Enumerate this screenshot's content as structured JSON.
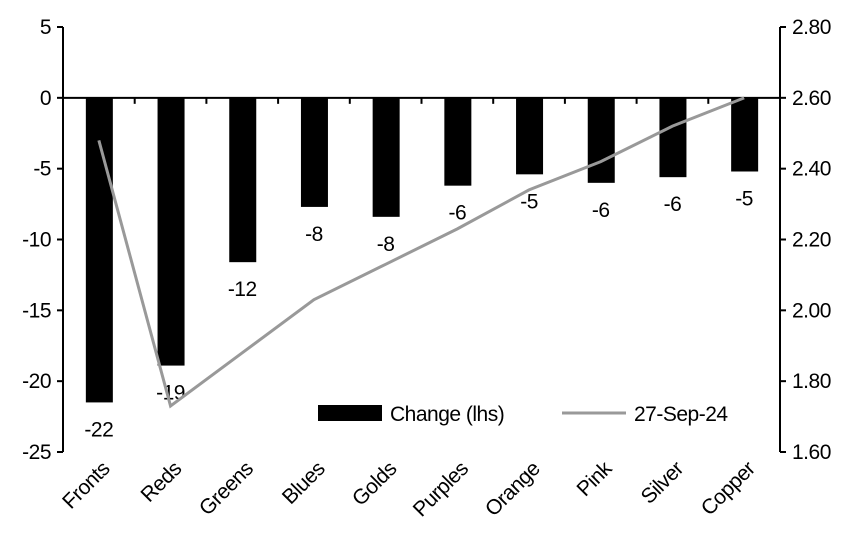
{
  "chart_data": {
    "type": "bar+line",
    "categories": [
      "Fronts",
      "Reds",
      "Greens",
      "Blues",
      "Golds",
      "Purples",
      "Orange",
      "Pink",
      "Silver",
      "Copper"
    ],
    "series": [
      {
        "name": "Change (lhs)",
        "type": "bar",
        "axis": "left",
        "values": [
          -21.5,
          -18.9,
          -11.6,
          -7.7,
          -8.4,
          -6.2,
          -5.4,
          -6.0,
          -5.6,
          -5.2
        ],
        "labels": [
          "-22",
          "-19",
          "-12",
          "-8",
          "-8",
          "-6",
          "-5",
          "-6",
          "-6",
          "-5"
        ],
        "color": "#000000"
      },
      {
        "name": "27-Sep-24",
        "type": "line",
        "axis": "right",
        "values": [
          2.48,
          1.73,
          1.88,
          2.03,
          2.13,
          2.23,
          2.34,
          2.42,
          2.52,
          2.6
        ],
        "color": "#999999"
      }
    ],
    "left_axis": {
      "ylim": [
        -25,
        5
      ],
      "ticks": [
        "5",
        "0",
        "-5",
        "-10",
        "-15",
        "-20",
        "-25"
      ]
    },
    "right_axis": {
      "ylim": [
        1.6,
        2.8
      ],
      "ticks": [
        "2.80",
        "2.60",
        "2.40",
        "2.20",
        "2.00",
        "1.80",
        "1.60"
      ]
    },
    "legend": "bottom-right inside",
    "grid": false
  }
}
